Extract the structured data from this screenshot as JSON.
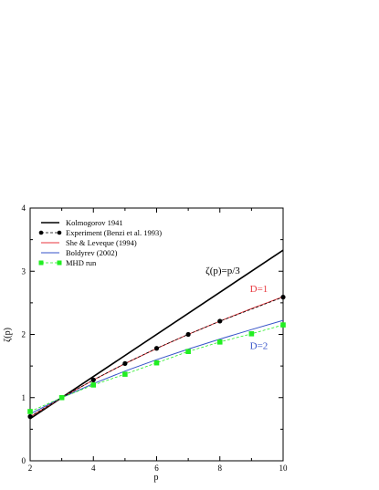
{
  "chart_data": {
    "type": "line",
    "xlabel": "p",
    "ylabel": "ζ(p)",
    "xlim": [
      2,
      10
    ],
    "ylim": [
      0,
      4
    ],
    "x_ticks": [
      "2",
      "4",
      "6",
      "8",
      "10"
    ],
    "y_ticks": [
      "0",
      "1",
      "2",
      "3",
      "4"
    ],
    "grid": false,
    "legend_placement": "top-left",
    "series": [
      {
        "name": "Kolmogorov 1941",
        "style": "line",
        "color": "#000000",
        "x": [
          2,
          10
        ],
        "y": [
          0.667,
          3.333
        ]
      },
      {
        "name": "Experiment (Benzi et al. 1993)",
        "style": "dashed-line-markers",
        "color": "#000000",
        "marker": "circle",
        "x": [
          2,
          3,
          4,
          5,
          6,
          7,
          8,
          10
        ],
        "y": [
          0.7,
          1.0,
          1.28,
          1.54,
          1.78,
          2.0,
          2.21,
          2.59
        ]
      },
      {
        "name": "She & Leveque (1994)",
        "style": "line",
        "color": "#e8363c",
        "x": [
          2,
          3,
          4,
          5,
          6,
          7,
          8,
          9,
          10
        ],
        "y": [
          0.696,
          1.0,
          1.28,
          1.538,
          1.778,
          2.001,
          2.211,
          2.409,
          2.597
        ]
      },
      {
        "name": "Boldyrev (2002)",
        "style": "line",
        "color": "#3552c8",
        "x": [
          2,
          3,
          4,
          5,
          6,
          7,
          8,
          9,
          10
        ],
        "y": [
          0.741,
          1.0,
          1.222,
          1.42,
          1.6,
          1.768,
          1.926,
          2.077,
          2.222
        ]
      },
      {
        "name": "MHD run",
        "style": "dashed-line-markers",
        "color": "#22ee22",
        "marker": "square",
        "x": [
          2,
          3,
          4,
          5,
          6,
          7,
          8,
          9,
          10
        ],
        "y": [
          0.78,
          1.0,
          1.2,
          1.37,
          1.55,
          1.73,
          1.88,
          2.01,
          2.15
        ]
      }
    ],
    "annotations": [
      {
        "text": "ζ(p)=p/3",
        "x": 7.55,
        "y": 2.96,
        "color": "#000000"
      },
      {
        "text": "D=1",
        "x": 8.95,
        "y": 2.67,
        "color": "#e8363c"
      },
      {
        "text": "D=2",
        "x": 8.95,
        "y": 1.77,
        "color": "#3552c8"
      }
    ]
  }
}
